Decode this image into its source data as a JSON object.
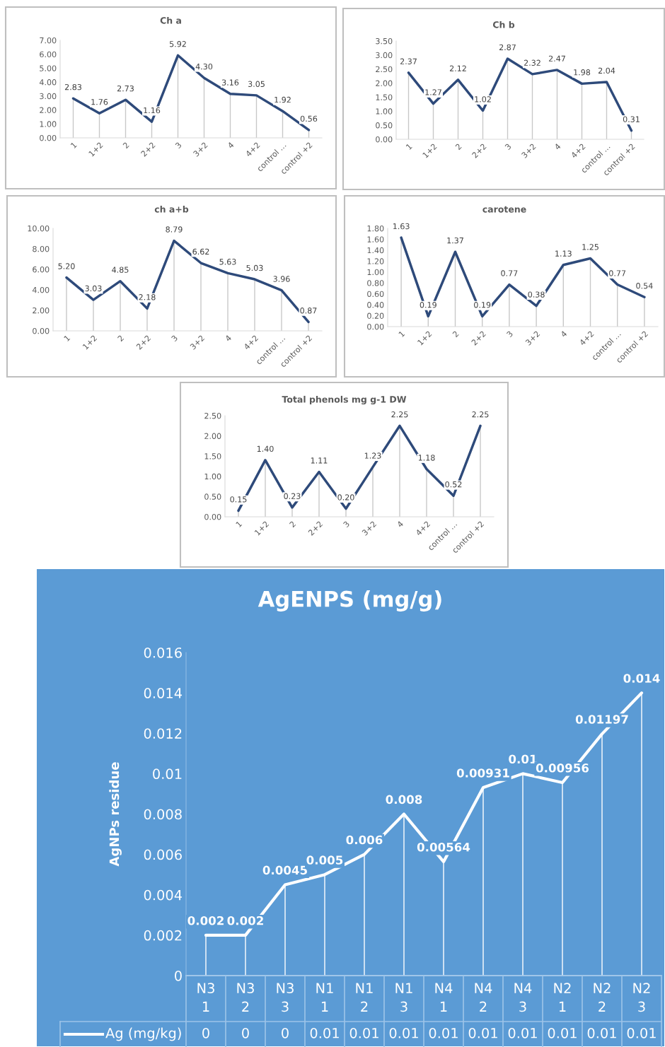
{
  "chart_data": [
    {
      "type": "line",
      "title": "Ch a",
      "categories": [
        "1",
        "1+2",
        "2",
        "2+2",
        "3",
        "3+2",
        "4",
        "4+2",
        "control …",
        "control +2"
      ],
      "series": [
        {
          "color": "#2e4a7a",
          "values": [
            2.83,
            1.76,
            2.73,
            1.16,
            5.92,
            4.3,
            3.16,
            3.05,
            1.92,
            0.56
          ],
          "value_labels": [
            "2.83",
            "1.76",
            "2.73",
            "1.16",
            "5.92",
            "4.30",
            "3.16",
            "3.05",
            "1.92",
            "0.56"
          ]
        }
      ],
      "ylim": [
        0,
        7
      ],
      "yticks": [
        {
          "value": 0,
          "label": "0.00"
        },
        {
          "value": 1,
          "label": "1.00"
        },
        {
          "value": 2,
          "label": "2.00"
        },
        {
          "value": 3,
          "label": "3.00"
        },
        {
          "value": 4,
          "label": "4.00"
        },
        {
          "value": 5,
          "label": "5.00"
        },
        {
          "value": 6,
          "label": "6.00"
        },
        {
          "value": 7,
          "label": "7.00"
        }
      ],
      "grid": "x",
      "marker": "none",
      "line_style": "solid"
    },
    {
      "type": "line",
      "title": "Ch b",
      "categories": [
        "1",
        "1+2",
        "2",
        "2+2",
        "3",
        "3+2",
        "4",
        "4+2",
        "control …",
        "control +2"
      ],
      "series": [
        {
          "color": "#2e4a7a",
          "values": [
            2.37,
            1.27,
            2.12,
            1.02,
            2.87,
            2.32,
            2.47,
            1.98,
            2.04,
            0.31
          ],
          "value_labels": [
            "2.37",
            "1.27",
            "2.12",
            "1.02",
            "2.87",
            "2.32",
            "2.47",
            "1.98",
            "2.04",
            "0.31"
          ]
        }
      ],
      "ylim": [
        0,
        3.5
      ],
      "yticks": [
        {
          "value": 0,
          "label": "0.00"
        },
        {
          "value": 0.5,
          "label": "0.50"
        },
        {
          "value": 1,
          "label": "1.00"
        },
        {
          "value": 1.5,
          "label": "1.50"
        },
        {
          "value": 2,
          "label": "2.00"
        },
        {
          "value": 2.5,
          "label": "2.50"
        },
        {
          "value": 3,
          "label": "3.00"
        },
        {
          "value": 3.5,
          "label": "3.50"
        }
      ],
      "grid": "x",
      "marker": "none",
      "line_style": "solid"
    },
    {
      "type": "line",
      "title": "ch a+b",
      "categories": [
        "1",
        "1+2",
        "2",
        "2+2",
        "3",
        "3+2",
        "4",
        "4+2",
        "control …",
        "control +2"
      ],
      "series": [
        {
          "color": "#2e4a7a",
          "values": [
            5.2,
            3.03,
            4.85,
            2.18,
            8.79,
            6.62,
            5.63,
            5.03,
            3.96,
            0.87
          ],
          "value_labels": [
            "5.20",
            "3.03",
            "4.85",
            "2.18",
            "8.79",
            "6.62",
            "5.63",
            "5.03",
            "3.96",
            "0.87"
          ]
        }
      ],
      "ylim": [
        0,
        10
      ],
      "yticks": [
        {
          "value": 0,
          "label": "0.00"
        },
        {
          "value": 2,
          "label": "2.00"
        },
        {
          "value": 4,
          "label": "4.00"
        },
        {
          "value": 6,
          "label": "6.00"
        },
        {
          "value": 8,
          "label": "8.00"
        },
        {
          "value": 10,
          "label": "10.00"
        }
      ],
      "grid": "x",
      "marker": "none",
      "line_style": "solid"
    },
    {
      "type": "line",
      "title": "carotene",
      "categories": [
        "1",
        "1+2",
        "2",
        "2+2",
        "3",
        "3+2",
        "4",
        "4+2",
        "control …",
        "control +2"
      ],
      "series": [
        {
          "color": "#2e4a7a",
          "values": [
            1.63,
            0.19,
            1.37,
            0.19,
            0.77,
            0.38,
            1.13,
            1.25,
            0.77,
            0.54
          ],
          "value_labels": [
            "1.63",
            "0.19",
            "1.37",
            "0.19",
            "0.77",
            "0.38",
            "1.13",
            "1.25",
            "0.77",
            "0.54"
          ]
        }
      ],
      "ylim": [
        0,
        1.8
      ],
      "yticks": [
        {
          "value": 0,
          "label": "0.00"
        },
        {
          "value": 0.2,
          "label": "0.20"
        },
        {
          "value": 0.4,
          "label": "0.40"
        },
        {
          "value": 0.6,
          "label": "0.60"
        },
        {
          "value": 0.8,
          "label": "0.80"
        },
        {
          "value": 1.0,
          "label": "1.00"
        },
        {
          "value": 1.2,
          "label": "1.20"
        },
        {
          "value": 1.4,
          "label": "1.40"
        },
        {
          "value": 1.6,
          "label": "1.60"
        },
        {
          "value": 1.8,
          "label": "1.80"
        }
      ],
      "grid": "x",
      "marker": "none",
      "line_style": "solid"
    },
    {
      "type": "line",
      "title": "Total phenols mg g-1 DW",
      "categories": [
        "1",
        "1+2",
        "2",
        "2+2",
        "3",
        "3+2",
        "4",
        "4+2",
        "control …",
        "control +2"
      ],
      "series": [
        {
          "color": "#2e4a7a",
          "values": [
            0.15,
            1.4,
            0.23,
            1.11,
            0.2,
            1.23,
            2.25,
            1.18,
            0.52,
            2.25
          ],
          "value_labels": [
            "0.15",
            "1.40",
            "0.23",
            "1.11",
            "0.20",
            "1.23",
            "2.25",
            "1.18",
            "0.52",
            "2.25"
          ]
        }
      ],
      "ylim": [
        0,
        2.5
      ],
      "yticks": [
        {
          "value": 0,
          "label": "0.00"
        },
        {
          "value": 0.5,
          "label": "0.50"
        },
        {
          "value": 1,
          "label": "1.00"
        },
        {
          "value": 1.5,
          "label": "1.50"
        },
        {
          "value": 2,
          "label": "2.00"
        },
        {
          "value": 2.5,
          "label": "2.50"
        }
      ],
      "grid": "x",
      "marker": "none",
      "line_style": "solid"
    },
    {
      "type": "line",
      "title": "AgENPS (mg/g)",
      "ylabel": "AgNPs residue",
      "categories": [
        "N3 1",
        "N3 2",
        "N3 3",
        "N1 1",
        "N1 2",
        "N1 3",
        "N4 1",
        "N4 2",
        "N4 3",
        "N2 1",
        "N2 2",
        "N2 3"
      ],
      "series": [
        {
          "name": "Ag (mg/kg)",
          "color": "#ffffff",
          "values": [
            0.002,
            0.002,
            0.0045,
            0.005,
            0.006,
            0.008,
            0.00564,
            0.00931,
            0.01,
            0.00956,
            0.01197,
            0.014
          ],
          "value_labels": [
            "0",
            "0",
            "0",
            "0.01",
            "0.01",
            "0.01",
            "0.01",
            "0.01",
            "0.01",
            "0.01",
            "0.01",
            "0.01"
          ]
        }
      ],
      "annotations": [
        {
          "text": "0.002",
          "x": "N3 1",
          "y": 0.002
        },
        {
          "text": "0.002",
          "x": "N3 2",
          "y": 0.002
        },
        {
          "text": "0.0045",
          "x": "N3 3",
          "y": 0.0045
        },
        {
          "text": "0.005",
          "x": "N1 1",
          "y": 0.005
        },
        {
          "text": "0.006",
          "x": "N1 2",
          "y": 0.006
        },
        {
          "text": "0.008",
          "x": "N1 3",
          "y": 0.008
        },
        {
          "text": "0.00564",
          "x": "N4 1",
          "y": 0.00564
        },
        {
          "text": "0.00931",
          "x": "N4 2",
          "y": 0.00931
        },
        {
          "text": "0.01",
          "x": "N4 3",
          "y": 0.01
        },
        {
          "text": "0.00956",
          "x": "N2 1",
          "y": 0.00956
        },
        {
          "text": "0.01197",
          "x": "N2 2",
          "y": 0.01197
        },
        {
          "text": "0.014",
          "x": "N2 3",
          "y": 0.014
        }
      ],
      "ylim": [
        0,
        0.016
      ],
      "yticks": [
        0,
        0.002,
        0.004,
        0.006,
        0.008,
        0.01,
        0.012,
        0.014,
        0.016
      ],
      "grid": "x",
      "marker": "none",
      "line_style": "solid",
      "legend": "bottom"
    }
  ]
}
